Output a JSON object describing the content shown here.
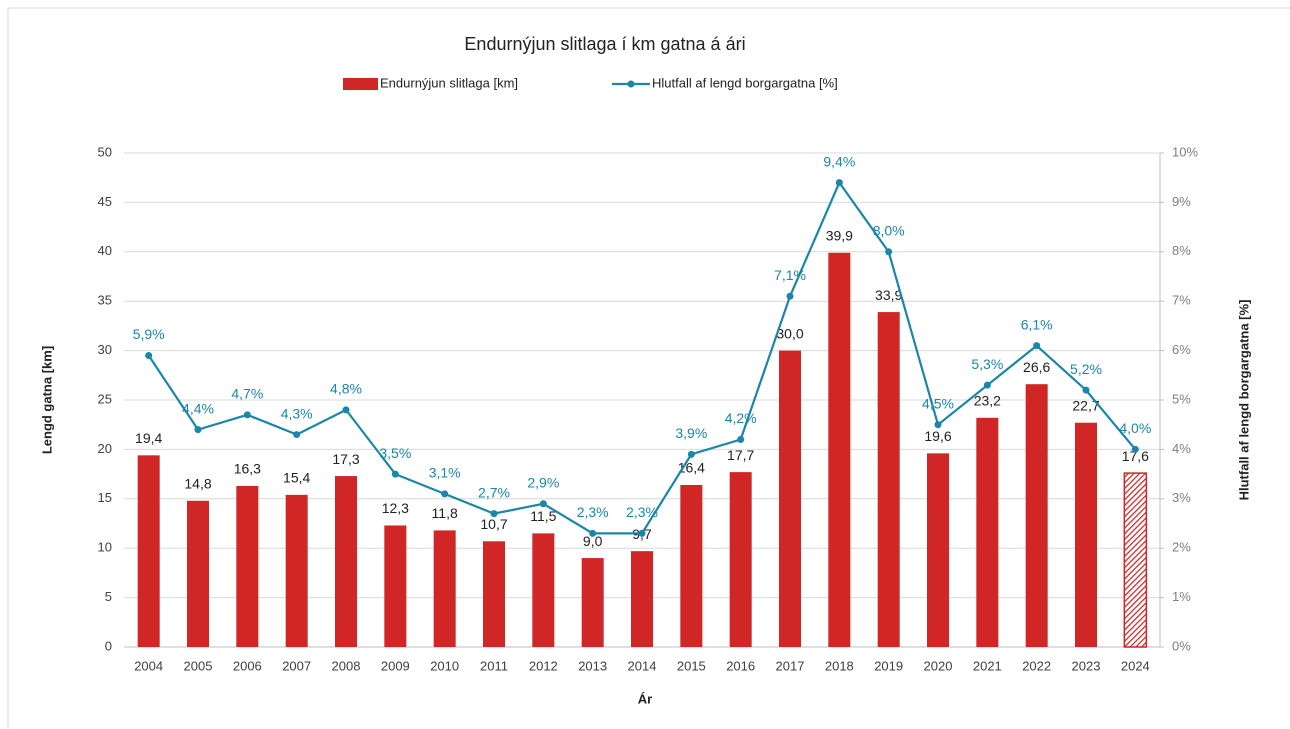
{
  "chart_data": {
    "type": "bar+line",
    "title": "Endurnýjun slitlaga í km gatna á ári",
    "x_label": "Ár",
    "y_label": "Lengd gatna [km]",
    "y2_label": "Hlutfall af lengd borgargatna [%]",
    "categories": [
      "2004",
      "2005",
      "2006",
      "2007",
      "2008",
      "2009",
      "2010",
      "2011",
      "2012",
      "2013",
      "2014",
      "2015",
      "2016",
      "2017",
      "2018",
      "2019",
      "2020",
      "2021",
      "2022",
      "2023",
      "2024"
    ],
    "ylim": [
      0,
      50
    ],
    "yticks": [
      0,
      5,
      10,
      15,
      20,
      25,
      30,
      35,
      40,
      45,
      50
    ],
    "y2lim": [
      0,
      10
    ],
    "y2ticks": [
      {
        "value": 0,
        "label": "0%"
      },
      {
        "value": 1,
        "label": "1%"
      },
      {
        "value": 2,
        "label": "2%"
      },
      {
        "value": 3,
        "label": "3%"
      },
      {
        "value": 4,
        "label": "4%"
      },
      {
        "value": 5,
        "label": "5%"
      },
      {
        "value": 6,
        "label": "6%"
      },
      {
        "value": 7,
        "label": "7%"
      },
      {
        "value": 8,
        "label": "8%"
      },
      {
        "value": 9,
        "label": "9%"
      },
      {
        "value": 10,
        "label": "10%"
      }
    ],
    "grid": true,
    "legend": "top",
    "series": [
      {
        "name": "Endurnýjun slitlaga [km]",
        "type": "bar",
        "color": "#d02626",
        "hatched_last": true,
        "values": [
          19.4,
          14.8,
          16.3,
          15.4,
          17.3,
          12.3,
          11.8,
          10.7,
          11.5,
          9.0,
          9.7,
          16.4,
          17.7,
          30.0,
          39.9,
          33.9,
          19.6,
          23.2,
          26.6,
          22.7,
          17.6
        ],
        "value_labels": [
          "19,4",
          "14,8",
          "16,3",
          "15,4",
          "17,3",
          "12,3",
          "11,8",
          "10,7",
          "11,5",
          "9,0",
          "9,7",
          "16,4",
          "17,7",
          "30,0",
          "39,9",
          "33,9",
          "19,6",
          "23,2",
          "26,6",
          "22,7",
          "17,6"
        ]
      },
      {
        "name": "Hlutfall af lengd borgargatna [%]",
        "type": "line",
        "axis": "y2",
        "color": "#1a86a8",
        "values": [
          5.9,
          4.4,
          4.7,
          4.3,
          4.8,
          3.5,
          3.1,
          2.7,
          2.9,
          2.3,
          2.3,
          3.9,
          4.2,
          7.1,
          9.4,
          8.0,
          4.5,
          5.3,
          6.1,
          5.2,
          4.0
        ],
        "value_labels": [
          "5,9%",
          "4,4%",
          "4,7%",
          "4,3%",
          "4,8%",
          "3,5%",
          "3,1%",
          "2,7%",
          "2,9%",
          "2,3%",
          "2,3%",
          "3,9%",
          "4,2%",
          "7,1%",
          "9,4%",
          "8,0%",
          "4,5%",
          "5,3%",
          "6,1%",
          "5,2%",
          "4,0%"
        ]
      }
    ]
  }
}
